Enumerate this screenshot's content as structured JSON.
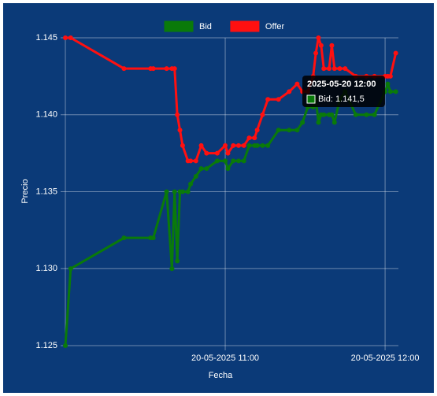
{
  "chart_data": {
    "type": "line",
    "x_label": "Fecha",
    "y_label": "Precio",
    "x": [
      "2025-05-20 10:00",
      "2025-05-20 10:02",
      "2025-05-20 10:22",
      "2025-05-20 10:32",
      "2025-05-20 10:33",
      "2025-05-20 10:38",
      "2025-05-20 10:40",
      "2025-05-20 10:41",
      "2025-05-20 10:42",
      "2025-05-20 10:43",
      "2025-05-20 10:44",
      "2025-05-20 10:46",
      "2025-05-20 10:47",
      "2025-05-20 10:49",
      "2025-05-20 10:51",
      "2025-05-20 10:53",
      "2025-05-20 10:57",
      "2025-05-20 11:00",
      "2025-05-20 11:01",
      "2025-05-20 11:03",
      "2025-05-20 11:05",
      "2025-05-20 11:07",
      "2025-05-20 11:09",
      "2025-05-20 11:11",
      "2025-05-20 11:12",
      "2025-05-20 11:14",
      "2025-05-20 11:16",
      "2025-05-20 11:20",
      "2025-05-20 11:24",
      "2025-05-20 11:27",
      "2025-05-20 11:29",
      "2025-05-20 11:31",
      "2025-05-20 11:33",
      "2025-05-20 11:34",
      "2025-05-20 11:35",
      "2025-05-20 11:36",
      "2025-05-20 11:37",
      "2025-05-20 11:39",
      "2025-05-20 11:40",
      "2025-05-20 11:41",
      "2025-05-20 11:43",
      "2025-05-20 11:45",
      "2025-05-20 11:49",
      "2025-05-20 11:53",
      "2025-05-20 11:56",
      "2025-05-20 12:00",
      "2025-05-20 12:01",
      "2025-05-20 12:02",
      "2025-05-20 12:04"
    ],
    "series": [
      {
        "name": "Bid",
        "color": "#0a7a0a",
        "values": [
          1.125,
          1.13,
          1.132,
          1.132,
          1.132,
          1.135,
          1.13,
          1.135,
          1.1305,
          1.135,
          1.135,
          1.135,
          1.1355,
          1.136,
          1.1365,
          1.1365,
          1.137,
          1.137,
          1.1365,
          1.137,
          1.137,
          1.137,
          1.138,
          1.138,
          1.138,
          1.138,
          1.138,
          1.139,
          1.139,
          1.139,
          1.1395,
          1.1405,
          1.1405,
          1.141,
          1.1395,
          1.14,
          1.14,
          1.14,
          1.14,
          1.1395,
          1.141,
          1.1415,
          1.14,
          1.14,
          1.14,
          1.1415,
          1.142,
          1.1415,
          1.1415
        ]
      },
      {
        "name": "Offer",
        "color": "#ff1010",
        "values": [
          1.145,
          1.145,
          1.143,
          1.143,
          1.143,
          1.143,
          1.143,
          1.143,
          1.14,
          1.139,
          1.138,
          1.137,
          1.137,
          1.137,
          1.138,
          1.1375,
          1.1375,
          1.138,
          1.1375,
          1.138,
          1.138,
          1.138,
          1.1385,
          1.1385,
          1.139,
          1.14,
          1.141,
          1.141,
          1.1415,
          1.142,
          1.1415,
          1.1415,
          1.1425,
          1.144,
          1.145,
          1.1445,
          1.143,
          1.143,
          1.1445,
          1.143,
          1.143,
          1.143,
          1.1425,
          1.1425,
          1.1425,
          1.1425,
          1.1425,
          1.1425,
          1.144
        ]
      }
    ],
    "xlim": [
      "2025-05-20 10:00",
      "2025-05-20 12:05"
    ],
    "xticks": [
      {
        "value": "2025-05-20 11:00",
        "label": "20-05-2025 11:00"
      },
      {
        "value": "2025-05-20 12:00",
        "label": "20-05-2025 12:00"
      }
    ],
    "ylim": [
      1.125,
      1.145
    ],
    "yticks": [
      1.145,
      {
        "value": 1.14,
        "label": "1.140"
      },
      1.135,
      {
        "value": 1.13,
        "label": "1.130"
      },
      1.125
    ],
    "grid": true,
    "legend": "top",
    "tooltip": {
      "title": "2025-05-20 12:00",
      "label": "Bid: 1.141,5"
    }
  }
}
